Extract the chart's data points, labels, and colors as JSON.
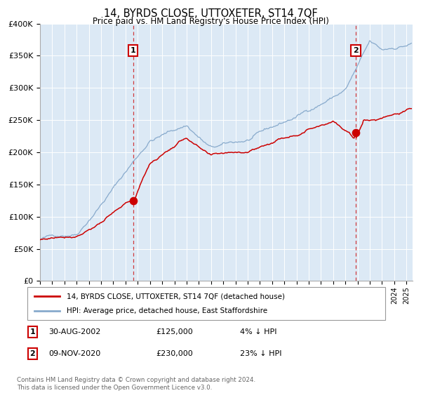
{
  "title": "14, BYRDS CLOSE, UTTOXETER, ST14 7QF",
  "subtitle": "Price paid vs. HM Land Registry's House Price Index (HPI)",
  "background_color": "#ffffff",
  "plot_bg_color": "#dce9f5",
  "grid_color": "#ffffff",
  "red_line_color": "#cc0000",
  "blue_line_color": "#88aacc",
  "marker1_date_str": "30-AUG-2002",
  "marker1_price_str": "£125,000",
  "marker1_hpi_str": "4% ↓ HPI",
  "marker1_value": 125000,
  "marker1_year": 2002.63,
  "marker2_date_str": "09-NOV-2020",
  "marker2_price_str": "£230,000",
  "marker2_hpi_str": "23% ↓ HPI",
  "marker2_value": 230000,
  "marker2_year": 2020.84,
  "xmin": 1995.0,
  "xmax": 2025.5,
  "ymin": 0,
  "ymax": 400000,
  "yticks": [
    0,
    50000,
    100000,
    150000,
    200000,
    250000,
    300000,
    350000,
    400000
  ],
  "ytick_labels": [
    "£0",
    "£50K",
    "£100K",
    "£150K",
    "£200K",
    "£250K",
    "£300K",
    "£350K",
    "£400K"
  ],
  "legend_label_red": "14, BYRDS CLOSE, UTTOXETER, ST14 7QF (detached house)",
  "legend_label_blue": "HPI: Average price, detached house, East Staffordshire",
  "footnote": "Contains HM Land Registry data © Crown copyright and database right 2024.\nThis data is licensed under the Open Government Licence v3.0."
}
